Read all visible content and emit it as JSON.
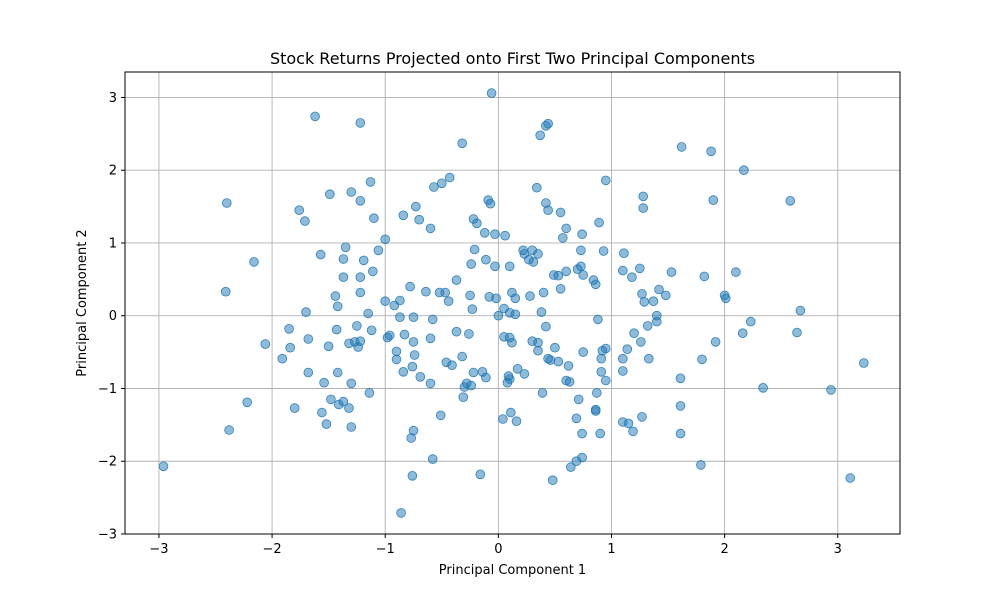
{
  "chart_data": {
    "type": "scatter",
    "title": "Stock Returns Projected onto First Two Principal Components",
    "xlabel": "Principal Component 1",
    "ylabel": "Principal Component 2",
    "xlim": [
      -3.3,
      3.55
    ],
    "ylim": [
      -3.0,
      3.35
    ],
    "xticks": [
      -3,
      -2,
      -1,
      0,
      1,
      2,
      3
    ],
    "yticks": [
      -3,
      -2,
      -1,
      0,
      1,
      2,
      3
    ],
    "xtick_labels": [
      "−3",
      "−2",
      "−1",
      "0",
      "1",
      "2",
      "3"
    ],
    "ytick_labels": [
      "−3",
      "−2",
      "−1",
      "0",
      "1",
      "2",
      "3"
    ],
    "grid": true,
    "marker_color": "#1f77b4",
    "marker_opacity": 0.5,
    "points": [
      [
        -0.06,
        3.06
      ],
      [
        -1.62,
        2.74
      ],
      [
        -1.22,
        2.65
      ],
      [
        0.44,
        2.64
      ],
      [
        0.42,
        2.61
      ],
      [
        0.37,
        2.48
      ],
      [
        -0.32,
        2.37
      ],
      [
        1.62,
        2.32
      ],
      [
        1.88,
        2.26
      ],
      [
        2.17,
        2.0
      ],
      [
        0.95,
        1.86
      ],
      [
        -1.13,
        1.84
      ],
      [
        -0.43,
        1.9
      ],
      [
        -0.5,
        1.82
      ],
      [
        -0.57,
        1.77
      ],
      [
        0.34,
        1.76
      ],
      [
        -1.3,
        1.7
      ],
      [
        -1.49,
        1.67
      ],
      [
        1.28,
        1.64
      ],
      [
        1.9,
        1.59
      ],
      [
        2.58,
        1.58
      ],
      [
        -2.4,
        1.55
      ],
      [
        -1.22,
        1.58
      ],
      [
        -0.09,
        1.59
      ],
      [
        -0.07,
        1.54
      ],
      [
        0.42,
        1.55
      ],
      [
        0.44,
        1.45
      ],
      [
        0.55,
        1.42
      ],
      [
        1.28,
        1.48
      ],
      [
        -0.73,
        1.5
      ],
      [
        -1.76,
        1.45
      ],
      [
        -1.71,
        1.3
      ],
      [
        -1.1,
        1.34
      ],
      [
        -0.84,
        1.38
      ],
      [
        -0.7,
        1.32
      ],
      [
        -0.22,
        1.33
      ],
      [
        -0.19,
        1.27
      ],
      [
        0.89,
        1.28
      ],
      [
        -0.6,
        1.2
      ],
      [
        -0.12,
        1.14
      ],
      [
        -0.03,
        1.12
      ],
      [
        0.06,
        1.1
      ],
      [
        0.6,
        1.2
      ],
      [
        0.74,
        1.12
      ],
      [
        0.57,
        1.07
      ],
      [
        -1.0,
        1.05
      ],
      [
        -1.35,
        0.94
      ],
      [
        -1.06,
        0.9
      ],
      [
        -0.21,
        0.91
      ],
      [
        0.22,
        0.9
      ],
      [
        0.3,
        0.9
      ],
      [
        0.23,
        0.85
      ],
      [
        0.35,
        0.85
      ],
      [
        0.93,
        0.89
      ],
      [
        0.73,
        0.9
      ],
      [
        1.11,
        0.86
      ],
      [
        -1.57,
        0.84
      ],
      [
        -1.37,
        0.78
      ],
      [
        -1.19,
        0.76
      ],
      [
        -0.11,
        0.77
      ],
      [
        -0.24,
        0.71
      ],
      [
        0.27,
        0.77
      ],
      [
        0.31,
        0.74
      ],
      [
        -2.16,
        0.74
      ],
      [
        -0.03,
        0.68
      ],
      [
        0.1,
        0.68
      ],
      [
        0.73,
        0.68
      ],
      [
        0.7,
        0.64
      ],
      [
        0.6,
        0.61
      ],
      [
        1.1,
        0.62
      ],
      [
        1.25,
        0.65
      ],
      [
        1.53,
        0.6
      ],
      [
        2.1,
        0.6
      ],
      [
        -1.11,
        0.61
      ],
      [
        -1.22,
        0.53
      ],
      [
        -1.37,
        0.53
      ],
      [
        0.49,
        0.56
      ],
      [
        0.53,
        0.55
      ],
      [
        0.75,
        0.56
      ],
      [
        1.18,
        0.53
      ],
      [
        1.82,
        0.54
      ],
      [
        0.84,
        0.49
      ],
      [
        0.86,
        0.43
      ],
      [
        -0.37,
        0.49
      ],
      [
        -2.41,
        0.33
      ],
      [
        -1.22,
        0.32
      ],
      [
        -0.78,
        0.4
      ],
      [
        -0.64,
        0.33
      ],
      [
        -0.52,
        0.32
      ],
      [
        -0.47,
        0.32
      ],
      [
        -0.25,
        0.28
      ],
      [
        0.12,
        0.32
      ],
      [
        0.4,
        0.32
      ],
      [
        0.55,
        0.37
      ],
      [
        1.27,
        0.3
      ],
      [
        1.42,
        0.36
      ],
      [
        1.48,
        0.28
      ],
      [
        2.0,
        0.28
      ],
      [
        2.01,
        0.24
      ],
      [
        -1.44,
        0.27
      ],
      [
        -1.42,
        0.13
      ],
      [
        -1.0,
        0.2
      ],
      [
        -0.92,
        0.14
      ],
      [
        -0.87,
        0.21
      ],
      [
        -0.44,
        0.2
      ],
      [
        -0.08,
        0.26
      ],
      [
        -0.02,
        0.24
      ],
      [
        0.05,
        0.1
      ],
      [
        0.15,
        0.24
      ],
      [
        0.28,
        0.27
      ],
      [
        1.29,
        0.19
      ],
      [
        1.37,
        0.2
      ],
      [
        -1.7,
        0.05
      ],
      [
        -1.15,
        0.03
      ],
      [
        -0.87,
        -0.02
      ],
      [
        -0.75,
        -0.02
      ],
      [
        -0.58,
        -0.05
      ],
      [
        -0.23,
        0.09
      ],
      [
        0.0,
        0.0
      ],
      [
        0.1,
        0.04
      ],
      [
        0.15,
        0.02
      ],
      [
        0.38,
        0.05
      ],
      [
        0.88,
        -0.05
      ],
      [
        1.4,
        -0.08
      ],
      [
        1.4,
        0.0
      ],
      [
        2.67,
        0.07
      ],
      [
        2.23,
        -0.08
      ],
      [
        -1.85,
        -0.18
      ],
      [
        -1.43,
        -0.19
      ],
      [
        -1.12,
        -0.2
      ],
      [
        -1.25,
        -0.14
      ],
      [
        -0.96,
        -0.27
      ],
      [
        -0.83,
        -0.26
      ],
      [
        -0.37,
        -0.22
      ],
      [
        -0.26,
        -0.25
      ],
      [
        0.05,
        -0.29
      ],
      [
        0.1,
        -0.3
      ],
      [
        0.3,
        -0.35
      ],
      [
        0.35,
        -0.37
      ],
      [
        0.42,
        -0.15
      ],
      [
        1.2,
        -0.24
      ],
      [
        1.32,
        -0.14
      ],
      [
        2.16,
        -0.24
      ],
      [
        2.64,
        -0.23
      ],
      [
        -2.06,
        -0.39
      ],
      [
        -1.68,
        -0.32
      ],
      [
        -1.84,
        -0.44
      ],
      [
        -1.5,
        -0.42
      ],
      [
        -1.32,
        -0.38
      ],
      [
        -1.27,
        -0.36
      ],
      [
        -1.22,
        -0.35
      ],
      [
        -1.24,
        -0.43
      ],
      [
        -0.98,
        -0.3
      ],
      [
        -0.75,
        -0.36
      ],
      [
        -0.9,
        -0.49
      ],
      [
        -0.6,
        -0.31
      ],
      [
        0.12,
        -0.37
      ],
      [
        0.35,
        -0.48
      ],
      [
        0.5,
        -0.44
      ],
      [
        0.75,
        -0.5
      ],
      [
        0.92,
        -0.48
      ],
      [
        0.95,
        -0.45
      ],
      [
        1.14,
        -0.46
      ],
      [
        1.26,
        -0.36
      ],
      [
        1.92,
        -0.36
      ],
      [
        -1.91,
        -0.59
      ],
      [
        -0.9,
        -0.6
      ],
      [
        -0.74,
        -0.54
      ],
      [
        -0.46,
        -0.64
      ],
      [
        -0.41,
        -0.68
      ],
      [
        -0.32,
        -0.56
      ],
      [
        0.44,
        -0.59
      ],
      [
        0.46,
        -0.61
      ],
      [
        0.53,
        -0.63
      ],
      [
        0.62,
        -0.69
      ],
      [
        0.91,
        -0.59
      ],
      [
        1.1,
        -0.59
      ],
      [
        1.33,
        -0.59
      ],
      [
        1.8,
        -0.6
      ],
      [
        3.23,
        -0.65
      ],
      [
        -1.68,
        -0.78
      ],
      [
        -1.42,
        -0.78
      ],
      [
        -0.76,
        -0.7
      ],
      [
        -0.84,
        -0.77
      ],
      [
        -0.69,
        -0.84
      ],
      [
        -0.22,
        -0.78
      ],
      [
        -0.11,
        -0.85
      ],
      [
        -0.14,
        -0.77
      ],
      [
        0.09,
        -0.83
      ],
      [
        0.17,
        -0.73
      ],
      [
        0.23,
        -0.8
      ],
      [
        0.91,
        -0.77
      ],
      [
        1.1,
        -0.76
      ],
      [
        1.61,
        -0.86
      ],
      [
        -1.54,
        -0.92
      ],
      [
        -1.3,
        -0.93
      ],
      [
        -0.6,
        -0.93
      ],
      [
        -0.3,
        -0.98
      ],
      [
        -0.28,
        -0.93
      ],
      [
        -0.24,
        -0.96
      ],
      [
        0.1,
        -0.87
      ],
      [
        0.08,
        -0.92
      ],
      [
        0.6,
        -0.89
      ],
      [
        0.63,
        -0.91
      ],
      [
        0.95,
        -0.89
      ],
      [
        2.34,
        -0.99
      ],
      [
        2.94,
        -1.02
      ],
      [
        -1.14,
        -1.06
      ],
      [
        -0.31,
        -1.12
      ],
      [
        0.39,
        -1.06
      ],
      [
        0.87,
        -1.06
      ],
      [
        -1.48,
        -1.15
      ],
      [
        -1.41,
        -1.22
      ],
      [
        -1.37,
        -1.18
      ],
      [
        -1.32,
        -1.27
      ],
      [
        -2.22,
        -1.19
      ],
      [
        -1.8,
        -1.27
      ],
      [
        0.11,
        -1.33
      ],
      [
        -0.51,
        -1.37
      ],
      [
        0.71,
        -1.15
      ],
      [
        0.86,
        -1.29
      ],
      [
        0.86,
        -1.31
      ],
      [
        1.27,
        -1.39
      ],
      [
        -1.56,
        -1.33
      ],
      [
        -1.52,
        -1.49
      ],
      [
        -1.3,
        -1.53
      ],
      [
        0.04,
        -1.42
      ],
      [
        0.16,
        -1.45
      ],
      [
        0.69,
        -1.41
      ],
      [
        1.1,
        -1.46
      ],
      [
        1.15,
        -1.48
      ],
      [
        1.61,
        -1.24
      ],
      [
        -2.38,
        -1.57
      ],
      [
        -0.75,
        -1.58
      ],
      [
        -0.77,
        -1.68
      ],
      [
        0.74,
        -1.62
      ],
      [
        0.9,
        -1.62
      ],
      [
        1.19,
        -1.59
      ],
      [
        1.61,
        -1.62
      ],
      [
        -0.58,
        -1.97
      ],
      [
        0.74,
        -1.95
      ],
      [
        0.69,
        -2.0
      ],
      [
        0.64,
        -2.08
      ],
      [
        1.79,
        -2.05
      ],
      [
        -2.96,
        -2.07
      ],
      [
        -0.16,
        -2.18
      ],
      [
        -0.76,
        -2.2
      ],
      [
        0.48,
        -2.26
      ],
      [
        3.11,
        -2.23
      ],
      [
        -0.86,
        -2.71
      ]
    ]
  }
}
